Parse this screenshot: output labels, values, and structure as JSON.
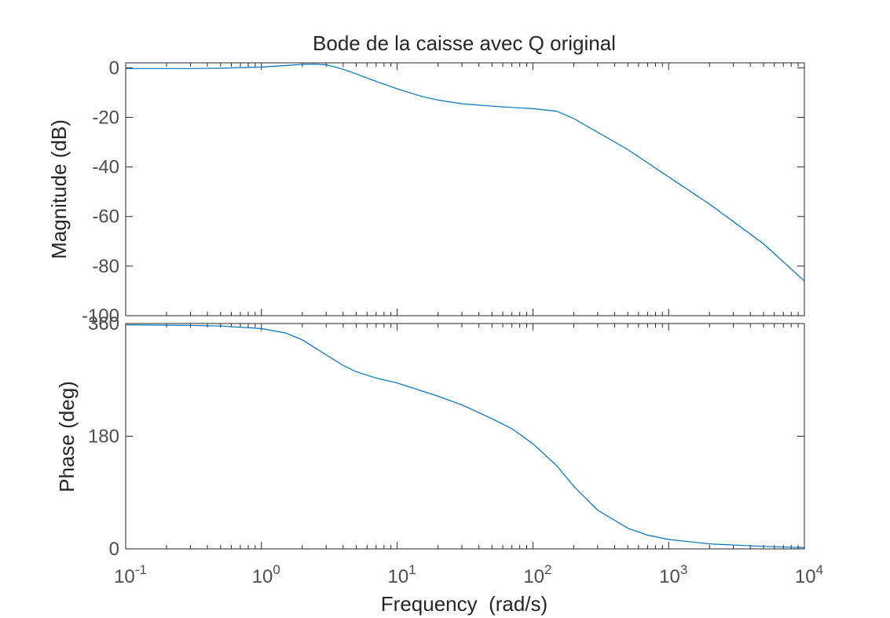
{
  "chart_data": {
    "type": "line",
    "title": "Bode de la caisse avec Q original",
    "xlabel": "Frequency  (rad/s)",
    "xscale": "log",
    "xlim": [
      0.1,
      10000
    ],
    "x_ticks": [
      {
        "base": "10",
        "exp": "-1"
      },
      {
        "base": "10",
        "exp": "0"
      },
      {
        "base": "10",
        "exp": "1"
      },
      {
        "base": "10",
        "exp": "2"
      },
      {
        "base": "10",
        "exp": "3"
      },
      {
        "base": "10",
        "exp": "4"
      }
    ],
    "color": "#0072bd",
    "grid": false,
    "panels": [
      {
        "name": "magnitude",
        "ylabel": "Magnitude (dB)",
        "ylim": [
          -100,
          2
        ],
        "y_ticks": [
          "0",
          "-20",
          "-40",
          "-60",
          "-80",
          "-100"
        ],
        "series": [
          {
            "x": [
              0.1,
              0.3,
              0.5,
              1,
              1.5,
              2,
              2.5,
              3,
              3.5,
              4,
              5,
              7,
              10,
              15,
              20,
              30,
              50,
              70,
              100,
              150,
              200,
              300,
              500,
              1000,
              2000,
              5000,
              10000
            ],
            "y": [
              -0.3,
              -0.3,
              -0.2,
              0.3,
              0.9,
              1.4,
              1.5,
              1.2,
              0.3,
              -0.6,
              -2.5,
              -5.5,
              -8.5,
              -11.5,
              -13.0,
              -14.5,
              -15.5,
              -16.0,
              -16.5,
              -17.5,
              -20.5,
              -26.0,
              -33.0,
              -44.0,
              -55.0,
              -71.0,
              -86.0
            ]
          }
        ]
      },
      {
        "name": "phase",
        "ylabel": "Phase (deg)",
        "ylim": [
          0,
          360
        ],
        "y_ticks": [
          "0",
          "180",
          "360"
        ],
        "series": [
          {
            "x": [
              0.1,
              0.3,
              0.5,
              1,
              1.5,
              2,
              3,
              4,
              5,
              7,
              10,
              20,
              30,
              50,
              70,
              100,
              150,
              200,
              300,
              500,
              700,
              1000,
              2000,
              5000,
              10000
            ],
            "y": [
              358,
              357,
              356,
              352,
              345,
              334,
              310,
              293,
              283,
              273,
              265,
              244,
              230,
              208,
              192,
              168,
              133,
              100,
              62,
              33,
              22,
              15,
              8,
              4,
              2
            ]
          }
        ]
      }
    ]
  }
}
